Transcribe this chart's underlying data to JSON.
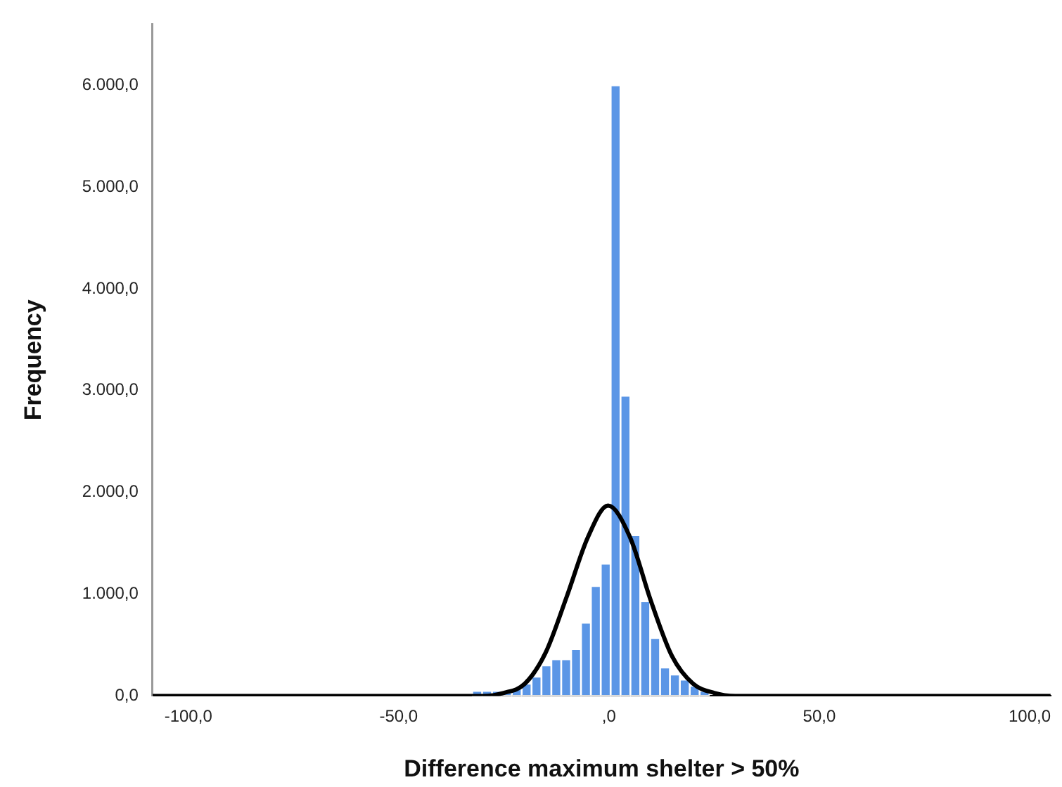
{
  "chart_data": {
    "type": "histogram",
    "xlabel": "Difference maximum shelter > 50%",
    "ylabel": "Frequency",
    "series": [
      {
        "color": "#5b96e6",
        "bins": [
          -32.5,
          -30.15,
          -27.8,
          -25.45,
          -23.1,
          -20.75,
          -18.4,
          -16.05,
          -13.7,
          -11.35,
          -9.0,
          -6.65,
          -4.3,
          -1.95,
          0.4,
          2.75,
          5.1,
          7.45,
          9.8,
          12.15,
          14.5,
          16.85,
          19.2,
          21.55,
          23.9,
          26.25
        ],
        "values": [
          50,
          50,
          50,
          50,
          80,
          120,
          190,
          300,
          360,
          360,
          460,
          720,
          1080,
          1300,
          6000,
          2950,
          1580,
          930,
          570,
          280,
          210,
          160,
          100,
          50,
          null
        ]
      },
      {
        "type": "line",
        "color": "#000000",
        "x": [
          -108.5,
          -40,
          -30,
          -25,
          -20,
          -15,
          -10,
          -5,
          -0.2,
          5,
          10,
          15,
          20,
          25,
          30,
          40,
          105
        ],
        "values": [
          0,
          0,
          0,
          30,
          120,
          430,
          980,
          1560,
          1870,
          1560,
          930,
          390,
          120,
          30,
          0,
          0,
          0
        ]
      }
    ],
    "xlim": [
      -108.5,
      105
    ],
    "ylim": [
      0,
      6600
    ],
    "xticks": [
      {
        "value": -100,
        "label": "-100,0"
      },
      {
        "value": -50,
        "label": "-50,0"
      },
      {
        "value": 0,
        "label": ",0"
      },
      {
        "value": 50,
        "label": "50,0"
      },
      {
        "value": 100,
        "label": "100,0"
      }
    ],
    "yticks": [
      {
        "value": 0,
        "label": "0,0"
      },
      {
        "value": 1000,
        "label": "1.000,0"
      },
      {
        "value": 2000,
        "label": "2.000,0"
      },
      {
        "value": 3000,
        "label": "3.000,0"
      },
      {
        "value": 4000,
        "label": "4.000,0"
      },
      {
        "value": 5000,
        "label": "5.000,0"
      },
      {
        "value": 6000,
        "label": "6.000,0"
      }
    ],
    "grid": false,
    "legend": false,
    "marker": "none",
    "line_style": "solid"
  }
}
